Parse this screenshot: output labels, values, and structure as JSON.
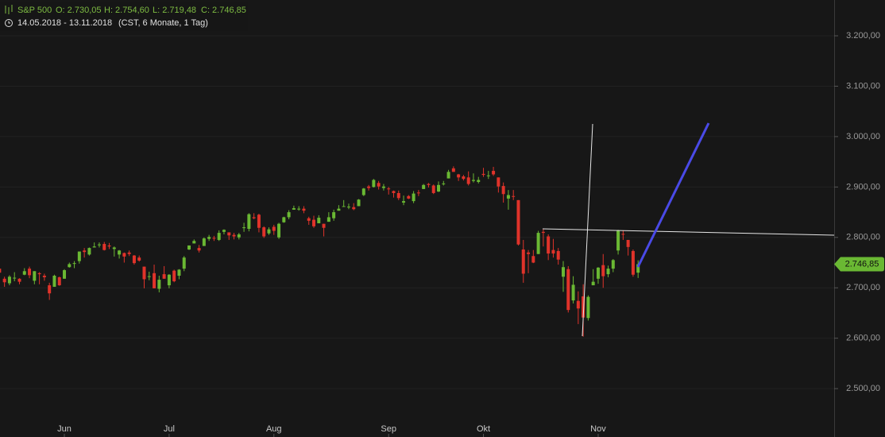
{
  "chart_data": {
    "type": "candlestick",
    "header": {
      "legend_values": [
        "O: 2.730,05",
        "H: 2.754,60",
        "L: 2.719,48",
        "C: 2.746,85"
      ],
      "range": "14.05.2018 - 13.11.2018",
      "info": "(CST, 6 Monate, 1 Tag)"
    },
    "series": [
      {
        "name": "S&P 500",
        "up_color": "#6ab833",
        "down_color": "#e0332a",
        "open": [
          2738,
          2718,
          2709,
          2719,
          2718,
          2726,
          2738,
          2714,
          2729,
          2724,
          2705,
          2702,
          2721,
          2718,
          2741,
          2749,
          2753,
          2774,
          2766,
          2780,
          2785,
          2787,
          2784,
          2777,
          2766,
          2769,
          2770,
          2764,
          2760,
          2742,
          2722,
          2729,
          2698,
          2727,
          2705,
          2734,
          2724,
          2738,
          2776,
          2788,
          2779,
          2783,
          2797,
          2799,
          2795,
          2811,
          2810,
          2805,
          2800,
          2820,
          2817,
          2840,
          2845,
          2820,
          2808,
          2821,
          2800,
          2830,
          2840,
          2855,
          2856,
          2857,
          2838,
          2835,
          2828,
          2827,
          2831,
          2838,
          2853,
          2861,
          2860,
          2860,
          2862,
          2884,
          2901,
          2900,
          2908,
          2898,
          2897,
          2892,
          2888,
          2869,
          2882,
          2872,
          2889,
          2896,
          2906,
          2903,
          2891,
          2906,
          2917,
          2937,
          2925,
          2921,
          2919,
          2912,
          2910,
          2926,
          2923,
          2932,
          2919,
          2902,
          2877,
          2882,
          2874,
          2776,
          2770,
          2763,
          2767,
          2811,
          2802,
          2775,
          2773,
          2722,
          2737,
          2675,
          2674,
          2683,
          2640,
          2705,
          2718,
          2745,
          2727,
          2738,
          2774,
          2807,
          2795,
          2773,
          2730.05
        ],
        "high": [
          2742,
          2722,
          2725,
          2731,
          2719,
          2739,
          2742,
          2733,
          2731,
          2728,
          2710,
          2726,
          2722,
          2737,
          2750,
          2753,
          2772,
          2779,
          2780,
          2790,
          2790,
          2791,
          2789,
          2782,
          2775,
          2770,
          2774,
          2765,
          2764,
          2742,
          2732,
          2746,
          2724,
          2743,
          2727,
          2736,
          2737,
          2763,
          2784,
          2796,
          2785,
          2800,
          2805,
          2803,
          2814,
          2816,
          2810,
          2809,
          2809,
          2829,
          2848,
          2848,
          2847,
          2822,
          2820,
          2825,
          2829,
          2841,
          2854,
          2863,
          2862,
          2862,
          2841,
          2843,
          2844,
          2827,
          2850,
          2855,
          2864,
          2874,
          2867,
          2868,
          2876,
          2898,
          2904,
          2916,
          2912,
          2906,
          2900,
          2893,
          2893,
          2883,
          2884,
          2892,
          2894,
          2906,
          2908,
          2905,
          2911,
          2912,
          2934,
          2941,
          2926,
          2924,
          2931,
          2927,
          2920,
          2938,
          2932,
          2940,
          2919,
          2909,
          2894,
          2894,
          2874,
          2795,
          2775,
          2775,
          2813,
          2816,
          2806,
          2797,
          2779,
          2753,
          2743,
          2723,
          2693,
          2707,
          2685,
          2737,
          2741,
          2767,
          2744,
          2757,
          2815,
          2814,
          2795,
          2776,
          2754.6
        ],
        "low": [
          2725,
          2702,
          2705,
          2713,
          2707,
          2725,
          2719,
          2707,
          2707,
          2714,
          2676,
          2702,
          2704,
          2718,
          2740,
          2739,
          2748,
          2760,
          2764,
          2780,
          2780,
          2774,
          2777,
          2762,
          2758,
          2750,
          2763,
          2746,
          2752,
          2699,
          2715,
          2699,
          2691,
          2718,
          2699,
          2711,
          2717,
          2733,
          2775,
          2788,
          2770,
          2783,
          2793,
          2793,
          2793,
          2806,
          2795,
          2796,
          2796,
          2811,
          2812,
          2836,
          2810,
          2799,
          2805,
          2805,
          2797,
          2829,
          2836,
          2855,
          2853,
          2848,
          2825,
          2819,
          2828,
          2802,
          2831,
          2833,
          2853,
          2861,
          2856,
          2854,
          2862,
          2882,
          2893,
          2899,
          2895,
          2893,
          2885,
          2879,
          2874,
          2864,
          2876,
          2868,
          2882,
          2896,
          2899,
          2886,
          2890,
          2903,
          2917,
          2930,
          2912,
          2913,
          2903,
          2909,
          2907,
          2920,
          2916,
          2922,
          2889,
          2869,
          2855,
          2874,
          2784,
          2710,
          2729,
          2749,
          2767,
          2782,
          2755,
          2760,
          2746,
          2692,
          2651,
          2669,
          2628,
          2603,
          2635,
          2705,
          2708,
          2700,
          2721,
          2731,
          2766,
          2795,
          2764,
          2722,
          2719.48
        ],
        "close": [
          2730,
          2711,
          2722,
          2720,
          2712,
          2733,
          2725,
          2733,
          2727,
          2721,
          2689,
          2724,
          2705,
          2735,
          2747,
          2749,
          2772,
          2771,
          2779,
          2782,
          2786,
          2775,
          2782,
          2780,
          2774,
          2762,
          2767,
          2749,
          2754,
          2717,
          2723,
          2699,
          2716,
          2718,
          2726,
          2713,
          2736,
          2760,
          2784,
          2793,
          2774,
          2798,
          2801,
          2798,
          2809,
          2815,
          2804,
          2802,
          2806,
          2820,
          2846,
          2838,
          2819,
          2802,
          2816,
          2813,
          2827,
          2840,
          2850,
          2858,
          2857,
          2853,
          2833,
          2822,
          2839,
          2819,
          2840,
          2850,
          2857,
          2862,
          2861,
          2856,
          2875,
          2897,
          2898,
          2914,
          2901,
          2901,
          2896,
          2888,
          2878,
          2872,
          2877,
          2887,
          2888,
          2904,
          2904,
          2888,
          2904,
          2907,
          2930,
          2930,
          2919,
          2916,
          2906,
          2914,
          2914,
          2924,
          2923,
          2925,
          2901,
          2886,
          2884,
          2881,
          2786,
          2728,
          2767,
          2750,
          2809,
          2809,
          2768,
          2768,
          2756,
          2741,
          2656,
          2706,
          2659,
          2641,
          2682,
          2712,
          2740,
          2723,
          2738,
          2755,
          2814,
          2806,
          2781,
          2726,
          2746.85
        ]
      }
    ],
    "xlim": [
      0.1,
      167.3
    ],
    "xticks": [
      {
        "value": 13,
        "label": "Jun"
      },
      {
        "value": 34,
        "label": "Jul"
      },
      {
        "value": 55,
        "label": "Aug"
      },
      {
        "value": 78,
        "label": "Sep"
      },
      {
        "value": 97,
        "label": "Okt"
      },
      {
        "value": 120,
        "label": "Nov"
      }
    ],
    "ylim": [
      2404,
      3271
    ],
    "yticks": [
      {
        "value": 2500,
        "label": "2.500,00"
      },
      {
        "value": 2600,
        "label": "2.600,00"
      },
      {
        "value": 2700,
        "label": "2.700,00"
      },
      {
        "value": 2800,
        "label": "2.800,00"
      },
      {
        "value": 2900,
        "label": "2.900,00"
      },
      {
        "value": 3000,
        "label": "3.000,00"
      },
      {
        "value": 3100,
        "label": "3.100,00"
      },
      {
        "value": 3200,
        "label": "3.200,00"
      }
    ],
    "last_price": {
      "value": 2746.85,
      "label": "2.746,85"
    },
    "grid": true
  }
}
